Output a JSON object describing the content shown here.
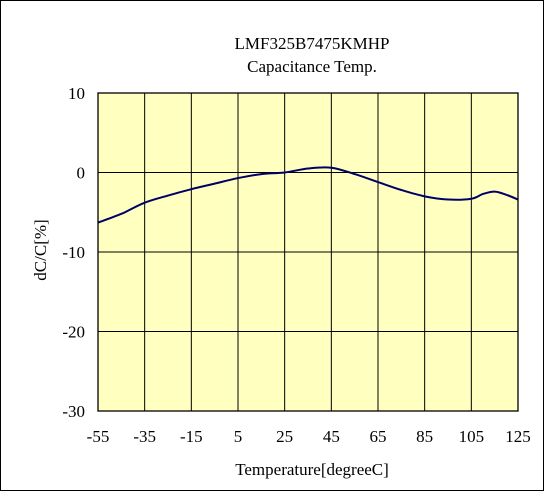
{
  "chart_data": {
    "type": "line",
    "title": "LMF325B7475KMHP",
    "subtitle": "Capacitance Temp.",
    "xlabel": "Temperature[degreeC]",
    "ylabel": "dC/C[%]",
    "xlim": [
      -55,
      125
    ],
    "ylim": [
      -30,
      10
    ],
    "x_ticks": [
      "-55",
      "-35",
      "-15",
      "5",
      "25",
      "45",
      "65",
      "85",
      "105",
      "125"
    ],
    "y_ticks": [
      "10",
      "0",
      "-10",
      "-20",
      "-30"
    ],
    "grid": true,
    "plot_background": "#ffffc0",
    "series": [
      {
        "color": "#000066",
        "x": [
          -55,
          -45,
          -35,
          -25,
          -15,
          -5,
          5,
          15,
          25,
          35,
          45,
          55,
          65,
          75,
          85,
          95,
          105,
          110,
          115,
          120,
          125
        ],
        "y": [
          -6.3,
          -5.2,
          -3.8,
          -2.9,
          -2.1,
          -1.4,
          -0.7,
          -0.2,
          0.0,
          0.5,
          0.6,
          -0.2,
          -1.2,
          -2.2,
          -3.0,
          -3.4,
          -3.3,
          -2.7,
          -2.4,
          -2.8,
          -3.4
        ]
      }
    ]
  }
}
